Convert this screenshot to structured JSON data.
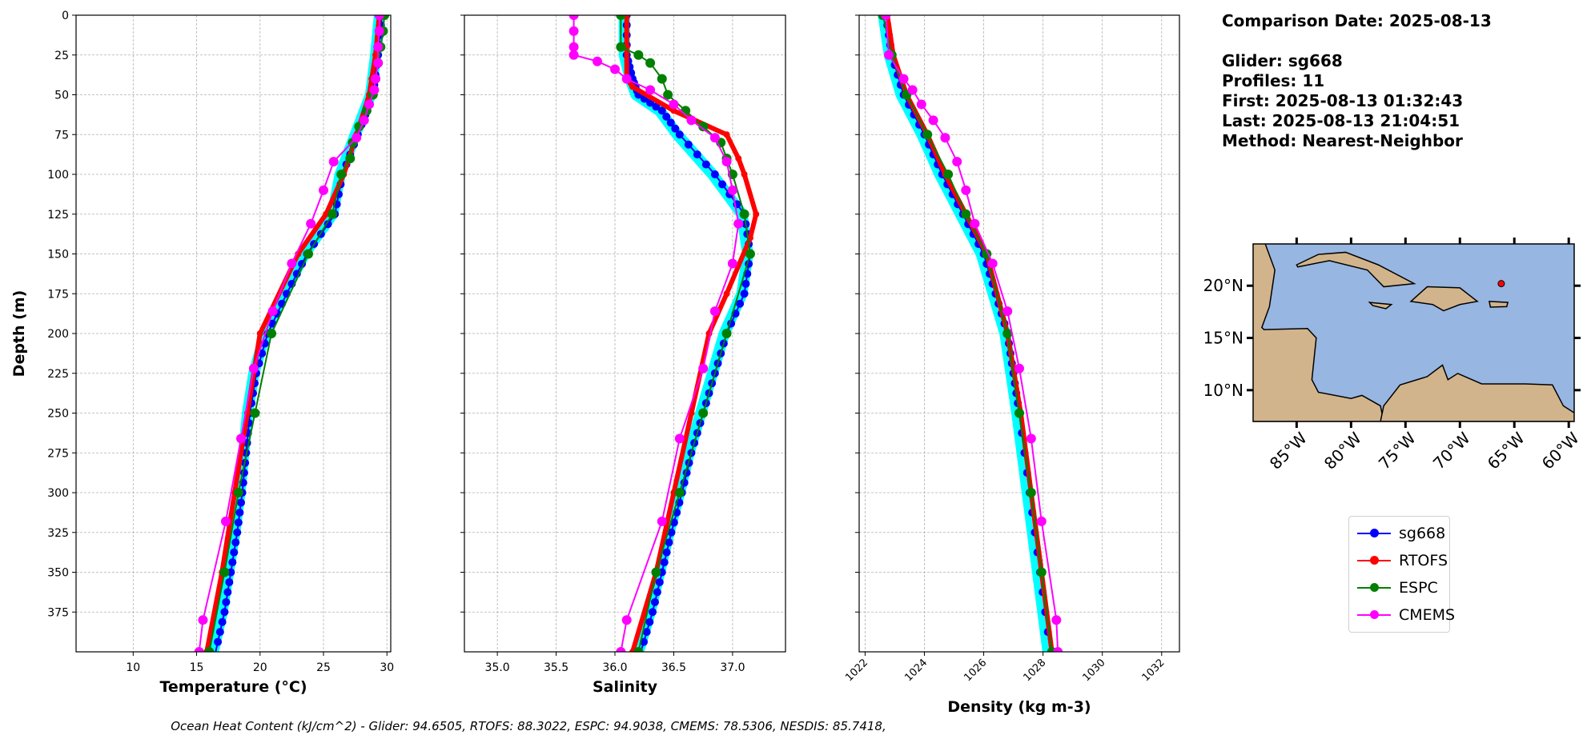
{
  "info": {
    "comparison_date": "Comparison Date: 2025-08-13",
    "glider": "Glider: sg668",
    "profiles": "Profiles: 11",
    "first": "First: 2025-08-13 01:32:43",
    "last": "Last: 2025-08-13 21:04:51",
    "method": "Method: Nearest-Neighbor"
  },
  "footer": "Ocean Heat Content (kJ/cm^2) - Glider: 94.6505,  RTOFS: 88.3022,  ESPC: 94.9038,  CMEMS: 78.5306,  NESDIS: 85.7418,",
  "legend": [
    {
      "name": "sg668",
      "color": "#0000ff"
    },
    {
      "name": "RTOFS",
      "color": "#ff0000"
    },
    {
      "name": "ESPC",
      "color": "#008000"
    },
    {
      "name": "CMEMS",
      "color": "#ff00ff"
    }
  ],
  "colors": {
    "glider_profiles": "#00ffff",
    "ocean": "#97b6e1",
    "land": "#d2b48c",
    "glider_location": "#ff0000"
  },
  "chart_data": [
    {
      "type": "line",
      "xlabel": "Temperature (°C)",
      "ylabel": "Depth (m)",
      "xlim": [
        5.5,
        30.3
      ],
      "ylim": [
        400,
        0
      ],
      "xticks": [
        10,
        15,
        20,
        25,
        30
      ],
      "yticks": [
        0,
        25,
        50,
        75,
        100,
        125,
        150,
        175,
        200,
        225,
        250,
        275,
        300,
        325,
        350,
        375
      ],
      "grid": true,
      "series": [
        {
          "name": "sg668",
          "depth": [
            0,
            25,
            50,
            75,
            100,
            125,
            150,
            175,
            200,
            225,
            250,
            275,
            300,
            325,
            350,
            375,
            400
          ],
          "values": [
            29.6,
            29.3,
            28.9,
            27.7,
            26.5,
            25.9,
            23.7,
            22.1,
            20.6,
            19.7,
            19.2,
            18.9,
            18.6,
            18.2,
            17.7,
            17.2,
            16.5
          ]
        },
        {
          "name": "RTOFS",
          "depth": [
            0,
            25,
            40,
            50,
            75,
            100,
            125,
            150,
            200,
            250,
            300,
            350,
            400
          ],
          "values": [
            29.4,
            29.1,
            28.8,
            28.6,
            27.6,
            26.6,
            25.2,
            23.0,
            20.0,
            19.0,
            18.0,
            17.0,
            15.8
          ]
        },
        {
          "name": "ESPC",
          "depth": [
            0,
            10,
            20,
            30,
            40,
            50,
            60,
            70,
            80,
            90,
            100,
            125,
            150,
            200,
            250,
            300,
            350,
            400
          ],
          "values": [
            29.8,
            29.7,
            29.5,
            29.3,
            29.1,
            28.9,
            28.4,
            27.8,
            27.3,
            27.1,
            26.4,
            25.7,
            23.8,
            20.9,
            19.6,
            18.3,
            17.2,
            16.0
          ]
        },
        {
          "name": "CMEMS",
          "depth": [
            0,
            10,
            20,
            30,
            40,
            47,
            56,
            66,
            77,
            92,
            110,
            131,
            156,
            186,
            222,
            266,
            318,
            380,
            400
          ],
          "values": [
            29.4,
            29.4,
            29.3,
            29.3,
            29.1,
            29.0,
            28.6,
            28.2,
            27.6,
            25.8,
            25.0,
            24.0,
            22.5,
            21.0,
            19.5,
            18.5,
            17.3,
            15.5,
            15.2
          ]
        }
      ]
    },
    {
      "type": "line",
      "xlabel": "Salinity",
      "xlim": [
        34.72,
        37.45
      ],
      "ylim": [
        400,
        0
      ],
      "xticks": [
        35.0,
        35.5,
        36.0,
        36.5,
        37.0
      ],
      "grid": true,
      "series": [
        {
          "name": "sg668",
          "depth": [
            0,
            25,
            40,
            50,
            60,
            75,
            100,
            125,
            150,
            175,
            200,
            225,
            250,
            275,
            300,
            325,
            350,
            375,
            400
          ],
          "values": [
            36.1,
            36.1,
            36.15,
            36.2,
            36.4,
            36.55,
            36.85,
            37.1,
            37.15,
            37.1,
            36.95,
            36.85,
            36.75,
            36.65,
            36.57,
            36.48,
            36.4,
            36.32,
            36.22
          ]
        },
        {
          "name": "RTOFS",
          "depth": [
            0,
            20,
            40,
            45,
            60,
            75,
            90,
            100,
            125,
            140,
            175,
            200,
            250,
            300,
            350,
            400
          ],
          "values": [
            36.1,
            36.1,
            36.1,
            36.15,
            36.5,
            36.95,
            37.05,
            37.1,
            37.2,
            37.15,
            36.95,
            36.8,
            36.65,
            36.5,
            36.35,
            36.15
          ]
        },
        {
          "name": "ESPC",
          "depth": [
            0,
            20,
            25,
            30,
            40,
            50,
            60,
            70,
            80,
            90,
            100,
            125,
            150,
            200,
            250,
            300,
            350,
            400
          ],
          "values": [
            36.05,
            36.05,
            36.2,
            36.3,
            36.4,
            36.45,
            36.6,
            36.75,
            36.9,
            36.95,
            37.0,
            37.1,
            37.15,
            36.95,
            36.75,
            36.55,
            36.35,
            36.2
          ]
        },
        {
          "name": "CMEMS",
          "depth": [
            0,
            10,
            20,
            25,
            29,
            34,
            40,
            47,
            56,
            66,
            77,
            92,
            110,
            131,
            156,
            186,
            222,
            266,
            318,
            380,
            400
          ],
          "values": [
            35.65,
            35.65,
            35.65,
            35.65,
            35.85,
            36.0,
            36.1,
            36.3,
            36.5,
            36.65,
            36.85,
            36.95,
            37.0,
            37.05,
            37.0,
            36.85,
            36.75,
            36.55,
            36.4,
            36.1,
            36.05
          ]
        }
      ]
    },
    {
      "type": "line",
      "xlabel": "Density (kg m-3)",
      "xlim": [
        1021.8,
        1032.6
      ],
      "ylim": [
        400,
        0
      ],
      "xticks": [
        1022,
        1024,
        1026,
        1028,
        1030,
        1032
      ],
      "grid": true,
      "series": [
        {
          "name": "sg668",
          "depth": [
            0,
            25,
            50,
            75,
            100,
            125,
            150,
            175,
            200,
            225,
            250,
            300,
            350,
            400
          ],
          "values": [
            1022.7,
            1022.9,
            1023.3,
            1024.0,
            1024.6,
            1025.3,
            1026.0,
            1026.4,
            1026.8,
            1027.0,
            1027.2,
            1027.55,
            1027.9,
            1028.25
          ]
        },
        {
          "name": "RTOFS",
          "depth": [
            0,
            25,
            50,
            75,
            100,
            125,
            150,
            200,
            250,
            300,
            350,
            400
          ],
          "values": [
            1022.75,
            1022.95,
            1023.4,
            1024.1,
            1024.7,
            1025.4,
            1026.1,
            1026.8,
            1027.25,
            1027.6,
            1027.95,
            1028.3
          ]
        },
        {
          "name": "ESPC",
          "depth": [
            0,
            25,
            50,
            75,
            100,
            125,
            150,
            200,
            250,
            300,
            350,
            400
          ],
          "values": [
            1022.6,
            1022.9,
            1023.4,
            1024.1,
            1024.8,
            1025.4,
            1026.1,
            1026.8,
            1027.2,
            1027.6,
            1027.95,
            1028.3
          ]
        },
        {
          "name": "CMEMS",
          "depth": [
            0,
            25,
            40,
            47,
            56,
            66,
            77,
            92,
            110,
            131,
            156,
            186,
            222,
            266,
            318,
            380,
            400
          ],
          "values": [
            1022.7,
            1022.8,
            1023.3,
            1023.6,
            1023.9,
            1024.3,
            1024.7,
            1025.1,
            1025.4,
            1025.7,
            1026.3,
            1026.8,
            1027.2,
            1027.6,
            1027.95,
            1028.45,
            1028.5
          ]
        }
      ]
    }
  ],
  "map": {
    "lon_range": [
      -89,
      -59.5
    ],
    "lat_range": [
      7,
      24
    ],
    "lat_ticks": [
      "10°N",
      "15°N",
      "20°N"
    ],
    "lat_tick_values": [
      10,
      15,
      20
    ],
    "lon_ticks": [
      "85°W",
      "80°W",
      "75°W",
      "70°W",
      "65°W",
      "60°W"
    ],
    "lon_tick_values": [
      -85,
      -80,
      -75,
      -70,
      -65,
      -60
    ],
    "glider_location": {
      "lon": -66.2,
      "lat": 20.2
    }
  }
}
